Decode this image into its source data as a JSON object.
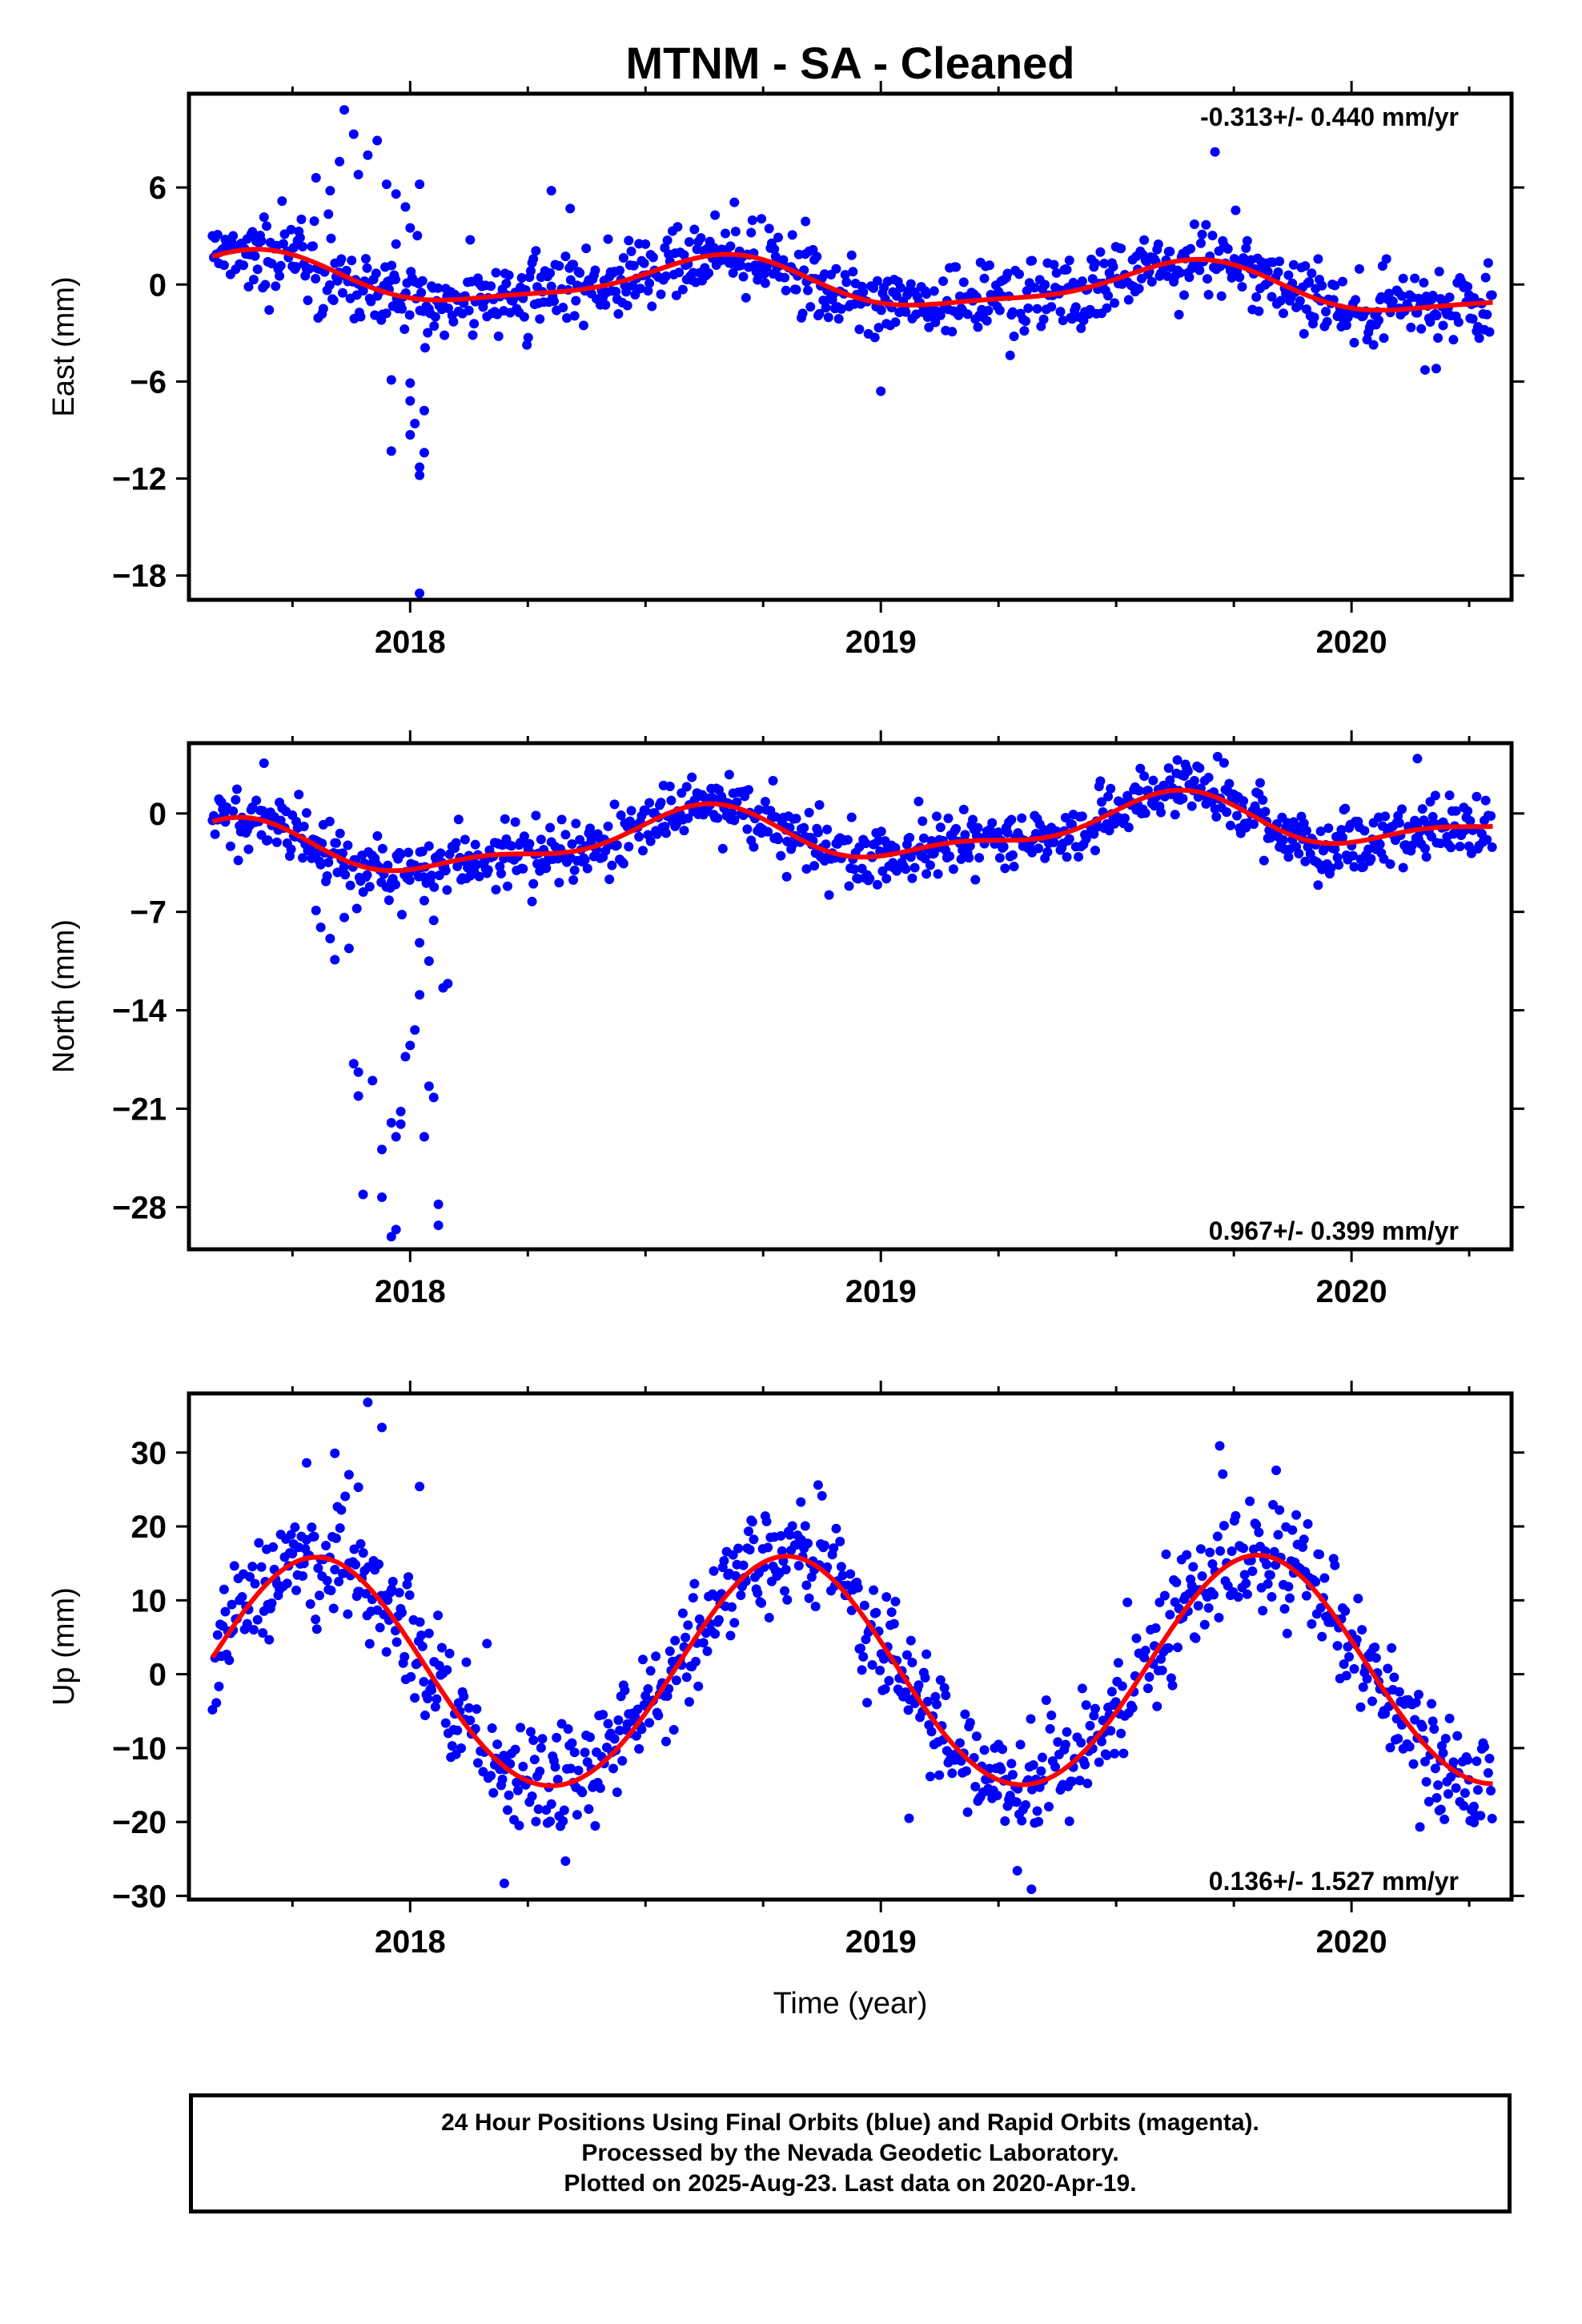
{
  "title": "MTNM  - SA - Cleaned",
  "colors": {
    "points": "#0000ff",
    "model": "#ff0000",
    "frame": "#000000"
  },
  "caption": {
    "line1": "24 Hour Positions Using Final Orbits (blue) and Rapid Orbits (magenta).",
    "line2": "Processed by the Nevada Geodetic Laboratory.",
    "line3": "Plotted on 2025-Aug-23. Last data on 2020-Apr-19."
  },
  "chart_data": [
    {
      "type": "scatter",
      "ylabel": "East (mm)",
      "xlabel": "",
      "xlim": [
        2017.53,
        2020.34
      ],
      "ylim": [
        -19.5,
        11.8
      ],
      "x_ticks": [
        2018,
        2019,
        2020
      ],
      "x_tick_labels": [
        "2018",
        "2019",
        "2020"
      ],
      "y_ticks": [
        6,
        0,
        -6,
        -12,
        -18
      ],
      "y_tick_labels": [
        "6",
        "0",
        "−6",
        "−12",
        "−18"
      ],
      "rate_text": "-0.313+/- 0.440 mm/yr",
      "rate_position": "top-right",
      "data_start": 2017.58,
      "data_end": 2020.3,
      "series": [
        {
          "name": "",
          "kind": "points",
          "model": {
            "trend_mm_per_yr": -0.313,
            "offset": 0.0,
            "annual_amp": 1.4,
            "annual_peak": 0.65,
            "semi_amp": 0.4,
            "semi_peak": 0.2
          },
          "noise_sd": 1.2,
          "outliers": [
            [
              2017.86,
              10.8
            ],
            [
              2017.88,
              9.3
            ],
            [
              2017.91,
              8.0
            ],
            [
              2017.89,
              6.8
            ],
            [
              2017.83,
              5.8
            ],
            [
              2017.93,
              8.9
            ],
            [
              2017.95,
              6.2
            ],
            [
              2017.97,
              5.6
            ],
            [
              2017.85,
              7.6
            ],
            [
              2017.8,
              6.6
            ],
            [
              2018.02,
              6.2
            ],
            [
              2017.99,
              4.8
            ],
            [
              2018.0,
              3.5
            ],
            [
              2017.97,
              2.5
            ],
            [
              2017.96,
              -5.9
            ],
            [
              2017.96,
              -10.3
            ],
            [
              2018.0,
              -6.1
            ],
            [
              2018.0,
              -7.2
            ],
            [
              2018.01,
              -8.6
            ],
            [
              2018.02,
              -11.3
            ],
            [
              2018.02,
              -11.8
            ],
            [
              2018.03,
              -10.4
            ],
            [
              2018.0,
              -9.3
            ],
            [
              2018.02,
              -19.1
            ],
            [
              2018.03,
              -7.8
            ],
            [
              2018.3,
              5.8
            ],
            [
              2018.34,
              4.7
            ],
            [
              2018.84,
              3.9
            ],
            [
              2019.71,
              8.2
            ],
            [
              2020.18,
              -5.2
            ],
            [
              2019.0,
              -6.6
            ]
          ]
        },
        {
          "name": "",
          "kind": "model-curve"
        }
      ]
    },
    {
      "type": "scatter",
      "ylabel": "North (mm)",
      "xlabel": "",
      "xlim": [
        2017.53,
        2020.34
      ],
      "ylim": [
        -31.0,
        5.0
      ],
      "x_ticks": [
        2018,
        2019,
        2020
      ],
      "x_tick_labels": [
        "2018",
        "2019",
        "2020"
      ],
      "y_ticks": [
        0,
        -7,
        -14,
        -21,
        -28
      ],
      "y_tick_labels": [
        "0",
        "−7",
        "−14",
        "−21",
        "−28"
      ],
      "rate_text": "0.967+/- 0.399 mm/yr",
      "rate_position": "bottom-right",
      "data_start": 2017.58,
      "data_end": 2020.3,
      "series": [
        {
          "name": "",
          "kind": "points",
          "model": {
            "trend_mm_per_yr": 0.967,
            "offset": -1.4,
            "annual_amp": 1.7,
            "annual_peak": 0.6,
            "semi_amp": 0.8,
            "semi_peak": 0.15
          },
          "noise_sd": 1.1,
          "outliers": [
            [
              2017.8,
              -6.9
            ],
            [
              2017.81,
              -8.1
            ],
            [
              2017.83,
              -8.9
            ],
            [
              2017.84,
              -10.4
            ],
            [
              2017.86,
              -7.4
            ],
            [
              2017.87,
              -9.6
            ],
            [
              2017.88,
              -17.8
            ],
            [
              2017.89,
              -18.4
            ],
            [
              2017.89,
              -20.1
            ],
            [
              2017.9,
              -27.1
            ],
            [
              2017.92,
              -19.0
            ],
            [
              2017.94,
              -27.3
            ],
            [
              2017.94,
              -23.9
            ],
            [
              2017.96,
              -22.0
            ],
            [
              2017.97,
              -23.0
            ],
            [
              2017.98,
              -22.1
            ],
            [
              2017.96,
              -30.1
            ],
            [
              2017.97,
              -29.6
            ],
            [
              2017.98,
              -21.2
            ],
            [
              2017.99,
              -17.3
            ],
            [
              2018.0,
              -16.5
            ],
            [
              2018.01,
              -15.4
            ],
            [
              2018.02,
              -9.2
            ],
            [
              2018.02,
              -12.9
            ],
            [
              2018.03,
              -23.0
            ],
            [
              2018.04,
              -19.4
            ],
            [
              2018.05,
              -20.2
            ],
            [
              2018.06,
              -27.8
            ],
            [
              2018.06,
              -29.3
            ],
            [
              2018.04,
              -10.5
            ],
            [
              2018.07,
              -12.4
            ],
            [
              2018.08,
              -12.1
            ],
            [
              2018.03,
              -6.2
            ],
            [
              2018.05,
              -7.6
            ],
            [
              2018.8,
              -4.5
            ],
            [
              2018.89,
              -5.8
            ],
            [
              2019.63,
              3.8
            ],
            [
              2020.14,
              3.9
            ]
          ]
        },
        {
          "name": "",
          "kind": "model-curve"
        }
      ]
    },
    {
      "type": "scatter",
      "ylabel": "Up (mm)",
      "xlabel": "Time (year)",
      "xlim": [
        2017.53,
        2020.34
      ],
      "ylim": [
        -30.5,
        38.0
      ],
      "x_ticks": [
        2018,
        2019,
        2020
      ],
      "x_tick_labels": [
        "2018",
        "2019",
        "2020"
      ],
      "y_ticks": [
        30,
        20,
        10,
        0,
        -10,
        -20,
        -30
      ],
      "y_tick_labels": [
        "30",
        "20",
        "10",
        "0",
        "−10",
        "−20",
        "−30"
      ],
      "rate_text": "0.136+/- 1.527 mm/yr",
      "rate_position": "bottom-right",
      "data_start": 2017.58,
      "data_end": 2020.3,
      "series": [
        {
          "name": "",
          "kind": "points",
          "model": {
            "trend_mm_per_yr": 0.136,
            "offset": 0.0,
            "annual_amp": 15.5,
            "annual_peak": 0.8,
            "semi_amp": 0.5,
            "semi_peak": 0.3
          },
          "noise_sd": 3.8,
          "outliers": [
            [
              2017.91,
              36.8
            ],
            [
              2017.94,
              33.4
            ],
            [
              2018.02,
              25.4
            ],
            [
              2017.78,
              28.6
            ],
            [
              2017.84,
              29.9
            ],
            [
              2017.87,
              27.0
            ],
            [
              2017.89,
              25.3
            ],
            [
              2018.83,
              23.3
            ],
            [
              2019.72,
              30.9
            ],
            [
              2019.84,
              27.6
            ],
            [
              2018.2,
              -28.3
            ],
            [
              2018.33,
              -25.3
            ],
            [
              2019.32,
              -29.1
            ],
            [
              2019.29,
              -26.6
            ],
            [
              2020.19,
              -18.3
            ],
            [
              2020.26,
              -17.9
            ],
            [
              2019.06,
              -19.5
            ]
          ]
        },
        {
          "name": "",
          "kind": "model-curve"
        }
      ]
    }
  ]
}
